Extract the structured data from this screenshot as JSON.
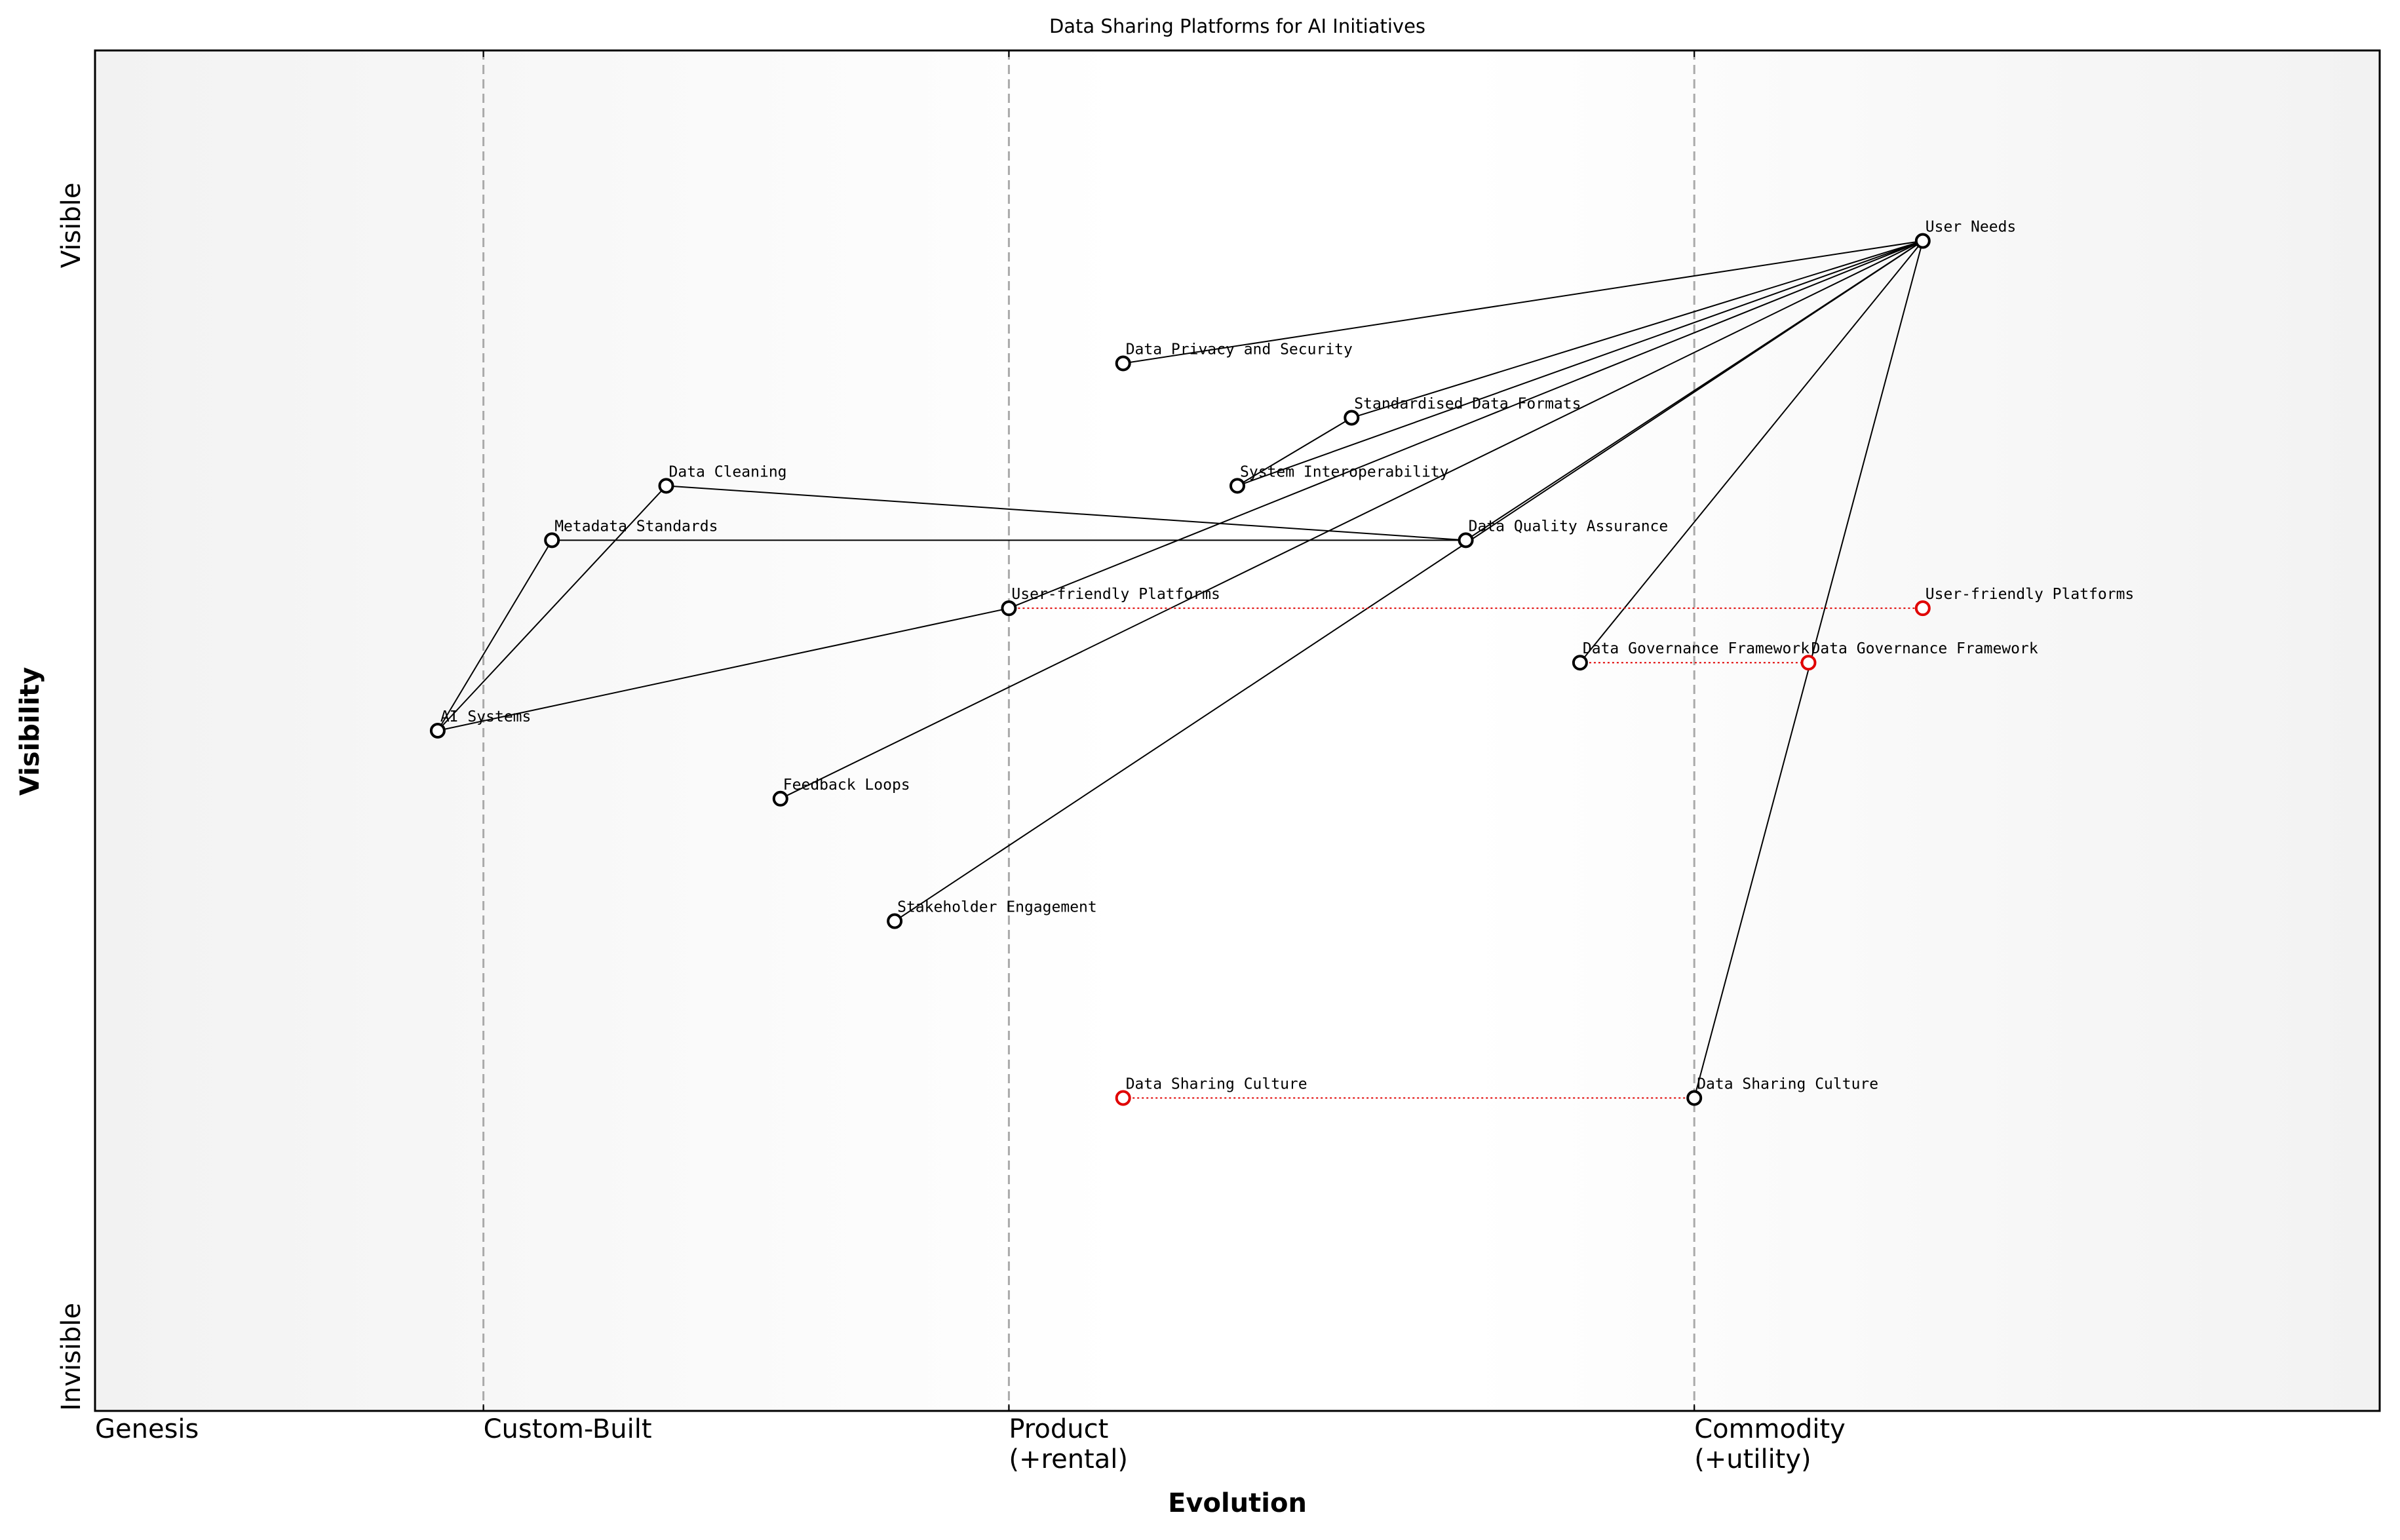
{
  "chart_data": {
    "type": "wardley",
    "title": "Data Sharing Platforms for AI Initiatives",
    "x_label": "Evolution",
    "y_label": "Visibility",
    "xlim": [
      0,
      1
    ],
    "ylim": [
      0,
      1
    ],
    "xticks": [
      {
        "value": 0,
        "label": "Genesis"
      },
      {
        "value": 0.17,
        "label": "Custom-Built"
      },
      {
        "value": 0.4,
        "label": "Product\n(+rental)"
      },
      {
        "value": 0.7,
        "label": "Commodity\n(+utility)"
      }
    ],
    "yticks": [
      {
        "value": 0,
        "label": "Invisible"
      },
      {
        "value": 0.84,
        "label": "Visible"
      }
    ],
    "components": [
      {
        "name": "User Needs",
        "x": 0.8,
        "y": 0.86
      },
      {
        "name": "Data Privacy and Security",
        "x": 0.45,
        "y": 0.77
      },
      {
        "name": "Standardised Data Formats",
        "x": 0.55,
        "y": 0.73
      },
      {
        "name": "System Interoperability",
        "x": 0.5,
        "y": 0.68
      },
      {
        "name": "Data Cleaning",
        "x": 0.25,
        "y": 0.68
      },
      {
        "name": "Metadata Standards",
        "x": 0.2,
        "y": 0.64
      },
      {
        "name": "Data Quality Assurance",
        "x": 0.6,
        "y": 0.64
      },
      {
        "name": "User-friendly Platforms",
        "x": 0.4,
        "y": 0.59
      },
      {
        "name": "Data Governance Framework",
        "x": 0.65,
        "y": 0.55
      },
      {
        "name": "AI Systems",
        "x": 0.15,
        "y": 0.5
      },
      {
        "name": "Feedback Loops",
        "x": 0.3,
        "y": 0.45
      },
      {
        "name": "Stakeholder Engagement",
        "x": 0.35,
        "y": 0.36
      },
      {
        "name": "Data Sharing Culture",
        "x": 0.7,
        "y": 0.23
      }
    ],
    "evolved": [
      {
        "name": "User-friendly Platforms",
        "x": 0.8,
        "y": 0.59
      },
      {
        "name": "Data Governance Framework",
        "x": 0.75,
        "y": 0.55
      },
      {
        "name": "Data Sharing Culture",
        "x": 0.45,
        "y": 0.23
      }
    ],
    "links": [
      [
        "User Needs",
        "Data Privacy and Security"
      ],
      [
        "User Needs",
        "Standardised Data Formats"
      ],
      [
        "User Needs",
        "System Interoperability"
      ],
      [
        "User Needs",
        "User-friendly Platforms"
      ],
      [
        "User Needs",
        "Feedback Loops"
      ],
      [
        "User Needs",
        "Data Quality Assurance"
      ],
      [
        "User Needs",
        "Stakeholder Engagement"
      ],
      [
        "User Needs",
        "Data Governance Framework"
      ],
      [
        "User Needs",
        "Data Sharing Culture"
      ],
      [
        "Standardised Data Formats",
        "System Interoperability"
      ],
      [
        "Data Cleaning",
        "Data Quality Assurance"
      ],
      [
        "Metadata Standards",
        "Data Quality Assurance"
      ],
      [
        "AI Systems",
        "Data Cleaning"
      ],
      [
        "AI Systems",
        "Metadata Standards"
      ],
      [
        "AI Systems",
        "User-friendly Platforms"
      ]
    ],
    "colors": {
      "component": "#000000",
      "evolved": "#e00000"
    }
  }
}
